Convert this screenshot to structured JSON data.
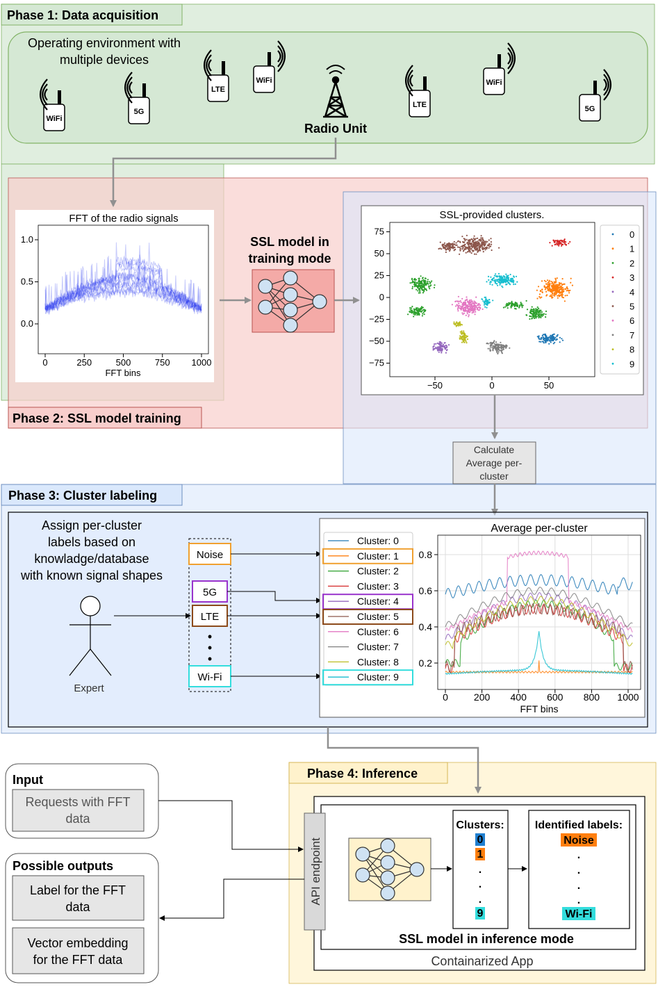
{
  "phase1": {
    "title": "Phase 1: Data acquisition",
    "env_line1": "Operating environment with",
    "env_line2": "multiple devices",
    "devices": [
      {
        "label": "WiFi"
      },
      {
        "label": "5G"
      },
      {
        "label": "LTE"
      },
      {
        "label": "WiFi"
      },
      {
        "label": "LTE"
      },
      {
        "label": "WiFi"
      },
      {
        "label": "5G"
      }
    ],
    "radio_unit": "Radio Unit"
  },
  "phase2": {
    "title": "Phase 2: SSL model training",
    "model_line1": "SSL model in",
    "model_line2": "training mode"
  },
  "fft_chart": {
    "title": "FFT of the radio signals",
    "xlabel": "FFT bins",
    "xticks": [
      "0",
      "250",
      "500",
      "750",
      "1000"
    ],
    "yticks": [
      "0.0",
      "0.5",
      "1.0"
    ]
  },
  "cluster_chart": {
    "title": "SSL-provided clusters.",
    "xticks": [
      "−50",
      "0",
      "50"
    ],
    "yticks": [
      "75",
      "50",
      "25",
      "0",
      "−25",
      "−50",
      "−75"
    ],
    "legend": [
      "0",
      "1",
      "2",
      "3",
      "4",
      "5",
      "6",
      "7",
      "8",
      "9"
    ]
  },
  "calc_box": {
    "line1": "Calculate",
    "line2": "Average per-",
    "line3": "cluster"
  },
  "phase3": {
    "title": "Phase 3: Cluster labeling",
    "assign_lines": [
      "Assign per-cluster",
      "labels based on",
      "knowladge/database",
      "with known signal shapes"
    ],
    "expert": "Expert",
    "labels": [
      "Noise",
      "5G",
      "LTE",
      "Wi-Fi"
    ],
    "dots": "•"
  },
  "avg_chart": {
    "title": "Average per-cluster",
    "xlabel": "FFT bins",
    "xticks": [
      "0",
      "200",
      "400",
      "600",
      "800",
      "1000"
    ],
    "yticks": [
      "0.8",
      "0.6",
      "0.4",
      "0.2"
    ],
    "legend": [
      "Cluster: 0",
      "Cluster: 1",
      "Cluster: 2",
      "Cluster: 3",
      "Cluster: 4",
      "Cluster: 5",
      "Cluster: 6",
      "Cluster: 7",
      "Cluster: 8",
      "Cluster: 9"
    ]
  },
  "phase4": {
    "title": "Phase 4: Inference",
    "input_title": "Input",
    "input_box_l1": "Requests with FFT",
    "input_box_l2": "data",
    "outputs_title": "Possible outputs",
    "out1_l1": "Label for the FFT",
    "out1_l2": "data",
    "out2_l1": "Vector embedding",
    "out2_l2": "for the FFT data",
    "api": "API endpoint",
    "clusters_title": "Clusters:",
    "cluster_first": "0",
    "cluster_second": "1",
    "cluster_last": "9",
    "labels_title": "Identified labels:",
    "label_first": "Noise",
    "label_last": "Wi-Fi",
    "vdot": ".",
    "model_caption": "SSL model  in inference mode",
    "container": "Containarized App"
  },
  "colors": {
    "phase1_bg": "#d5e8d4",
    "phase2_bg": "#f8cecc",
    "phase3_bg": "#dae8fc",
    "phase4_bg": "#fff2cc",
    "noise": "#ff7f0e",
    "fiveg": "#9933cc",
    "lte": "#8c4a1a",
    "wifi": "#33dddd"
  }
}
